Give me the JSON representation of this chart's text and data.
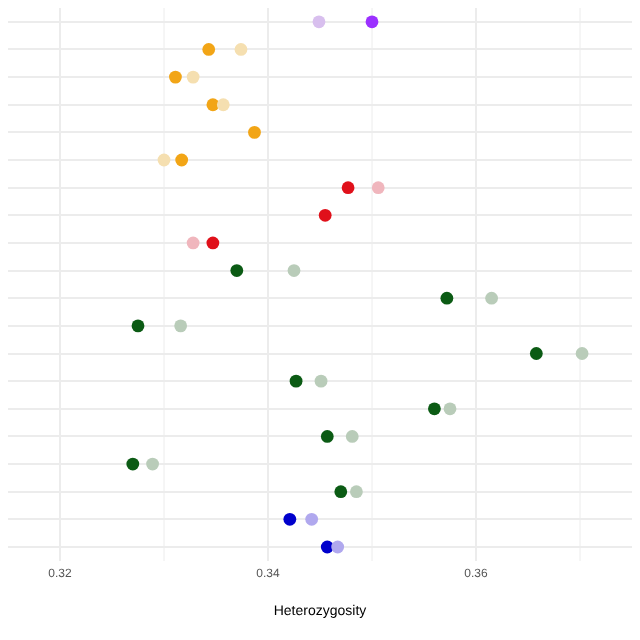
{
  "chart_data": {
    "type": "scatter",
    "orientation": "horizontal",
    "xlabel": "Heterozygosity",
    "categories": [
      null,
      null,
      null,
      null,
      null,
      null,
      null,
      null,
      null,
      null,
      null,
      null,
      null,
      null,
      null,
      null,
      null,
      null,
      null,
      null
    ],
    "series": [
      {
        "values": [
          0.3449,
          0.3374,
          0.3328,
          0.3357,
          null,
          0.33,
          0.3506,
          null,
          0.3328,
          0.3425,
          0.3615,
          0.3316,
          0.3702,
          0.3451,
          0.3575,
          0.3481,
          0.3289,
          0.3485,
          0.3442,
          0.3467
        ],
        "colors": [
          "#d8bfee",
          "#f5dfb0",
          "#f5dfb0",
          "#f5dfb0",
          "#f5dfb0",
          "#f5dfb0",
          "#f0b6bd",
          "#f0b6bd",
          "#f0b6bd",
          "#b9ccb9",
          "#b9ccb9",
          "#b9ccb9",
          "#b9ccb9",
          "#b9ccb9",
          "#b9ccb9",
          "#b9ccb9",
          "#b9ccb9",
          "#b9ccb9",
          "#b0a8ee",
          "#b0a8ee"
        ]
      },
      {
        "values": [
          0.35,
          0.3343,
          0.3311,
          0.3347,
          0.3387,
          0.3317,
          0.3477,
          0.3455,
          0.3347,
          0.337,
          0.3572,
          0.3275,
          0.3658,
          0.3427,
          0.356,
          0.3457,
          0.327,
          0.347,
          0.3421,
          0.3457
        ],
        "colors": [
          "#9b30ff",
          "#f2a516",
          "#f2a516",
          "#f2a516",
          "#f2a516",
          "#f2a516",
          "#e0101a",
          "#e0101a",
          "#e0101a",
          "#0b5b14",
          "#0b5b14",
          "#0b5b14",
          "#0b5b14",
          "#0b5b14",
          "#0b5b14",
          "#0b5b14",
          "#0b5b14",
          "#0b5b14",
          "#0000cc",
          "#0000cc"
        ]
      }
    ],
    "xlim": [
      0.315,
      0.375
    ],
    "xticks": [
      0.32,
      {
        "value": 0.33,
        "label": null
      },
      0.34,
      {
        "value": 0.35,
        "label": null
      },
      0.36,
      {
        "value": 0.37,
        "label": null
      }
    ],
    "grid": true,
    "tick_labels": "x",
    "marker": "circle",
    "legend": false
  }
}
